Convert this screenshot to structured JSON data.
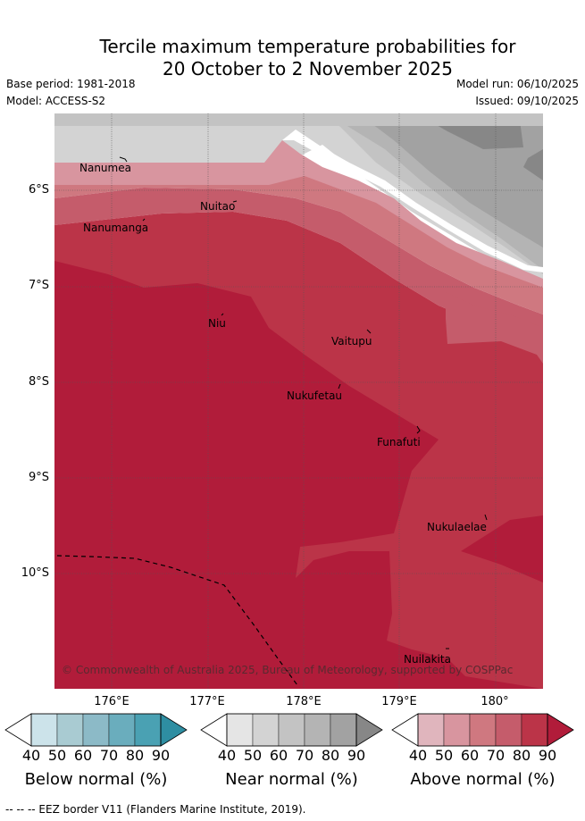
{
  "title": {
    "line1": "Tercile maximum temperature probabilities for",
    "line2": "20 October to 2 November 2025"
  },
  "meta": {
    "base_period": "Base period: 1981-2018",
    "model": "Model: ACCESS-S2",
    "model_run": "Model run: 06/10/2025",
    "issued": "Issued: 09/10/2025"
  },
  "map": {
    "lat_labels": [
      "6°S",
      "7°S",
      "8°S",
      "9°S",
      "10°S"
    ],
    "lon_labels": [
      "176°E",
      "177°E",
      "178°E",
      "179°E",
      "180°"
    ],
    "places": [
      {
        "name": "Nanumea"
      },
      {
        "name": "Nuitao"
      },
      {
        "name": "Nanumanga"
      },
      {
        "name": "Niu"
      },
      {
        "name": "Vaitupu"
      },
      {
        "name": "Nukufetau"
      },
      {
        "name": "Funafuti"
      },
      {
        "name": "Nukulaelae"
      },
      {
        "name": "Nuilakita"
      }
    ],
    "credit": "© Commonwealth of Australia 2025, Bureau of Meteorology, supported by COSPPac"
  },
  "colorbars": [
    {
      "label": "Below normal (%)",
      "ticks": [
        "40",
        "50",
        "60",
        "70",
        "80",
        "90"
      ],
      "colors": [
        "#ffffff",
        "#cce3ea",
        "#a9cbd2",
        "#8cbac7",
        "#6aadbd",
        "#4aa1b3",
        "#2e8ea2"
      ]
    },
    {
      "label": "Near normal (%)",
      "ticks": [
        "40",
        "50",
        "60",
        "70",
        "80",
        "90"
      ],
      "colors": [
        "#ffffff",
        "#e5e5e5",
        "#d3d3d3",
        "#c3c3c3",
        "#b4b4b4",
        "#a2a2a2",
        "#878787"
      ]
    },
    {
      "label": "Above normal (%)",
      "ticks": [
        "40",
        "50",
        "60",
        "70",
        "80",
        "90"
      ],
      "colors": [
        "#ffffff",
        "#e0b5bd",
        "#d8959f",
        "#cf7880",
        "#c55c6b",
        "#bb3448",
        "#b11c3a"
      ]
    }
  ],
  "footer": "--  --  -- EEZ border V11 (Flanders Marine Institute, 2019)."
}
